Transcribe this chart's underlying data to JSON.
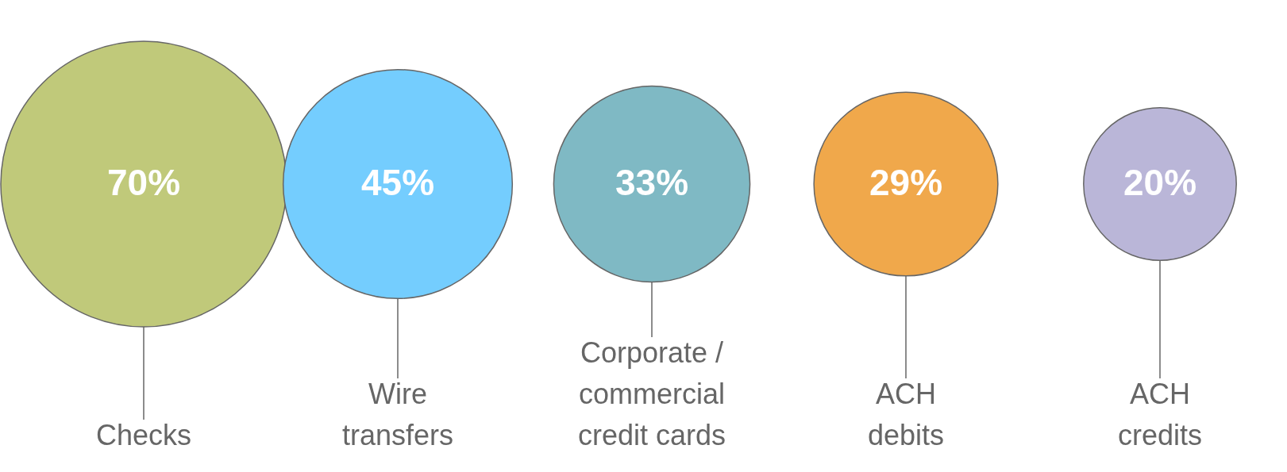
{
  "chart_data": {
    "type": "other",
    "categories": [
      "Checks",
      "Wire\ntransfers",
      "Corporate /\ncommercial\ncredit cards",
      "ACH\ndebits",
      "ACH\ncredits"
    ],
    "values": [
      70,
      45,
      33,
      29,
      20
    ],
    "value_labels": [
      "70%",
      "45%",
      "33%",
      "29%",
      "20%"
    ],
    "colors": [
      "#c0c97a",
      "#74cdfe",
      "#7fb9c4",
      "#f0a84b",
      "#bab6d8"
    ]
  }
}
